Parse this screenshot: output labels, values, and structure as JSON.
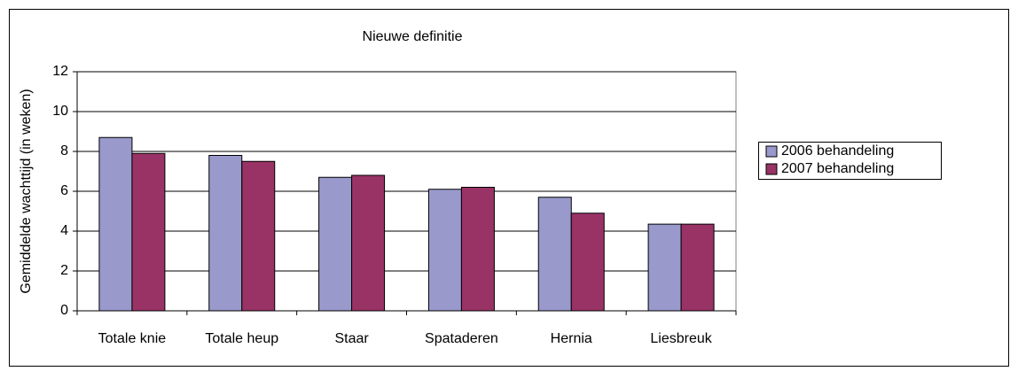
{
  "chart_data": {
    "type": "bar",
    "title": "Nieuwe definitie",
    "y_label": "Gemiddelde wachttijd  (in weken)",
    "categories": [
      "Totale knie",
      "Totale heup",
      "Staar",
      "Spataderen",
      "Hernia",
      "Liesbreuk"
    ],
    "series": [
      {
        "name": "2006 behandeling",
        "color": "#9999cc",
        "values": [
          8.7,
          7.8,
          6.7,
          6.1,
          5.7,
          4.35
        ]
      },
      {
        "name": "2007 behandeling",
        "color": "#993366",
        "values": [
          7.9,
          7.5,
          6.8,
          6.2,
          4.9,
          4.35
        ]
      }
    ],
    "ylim": [
      0,
      12
    ],
    "yticks": [
      0,
      2,
      4,
      6,
      8,
      10,
      12
    ],
    "grid": true,
    "legend": "right"
  }
}
